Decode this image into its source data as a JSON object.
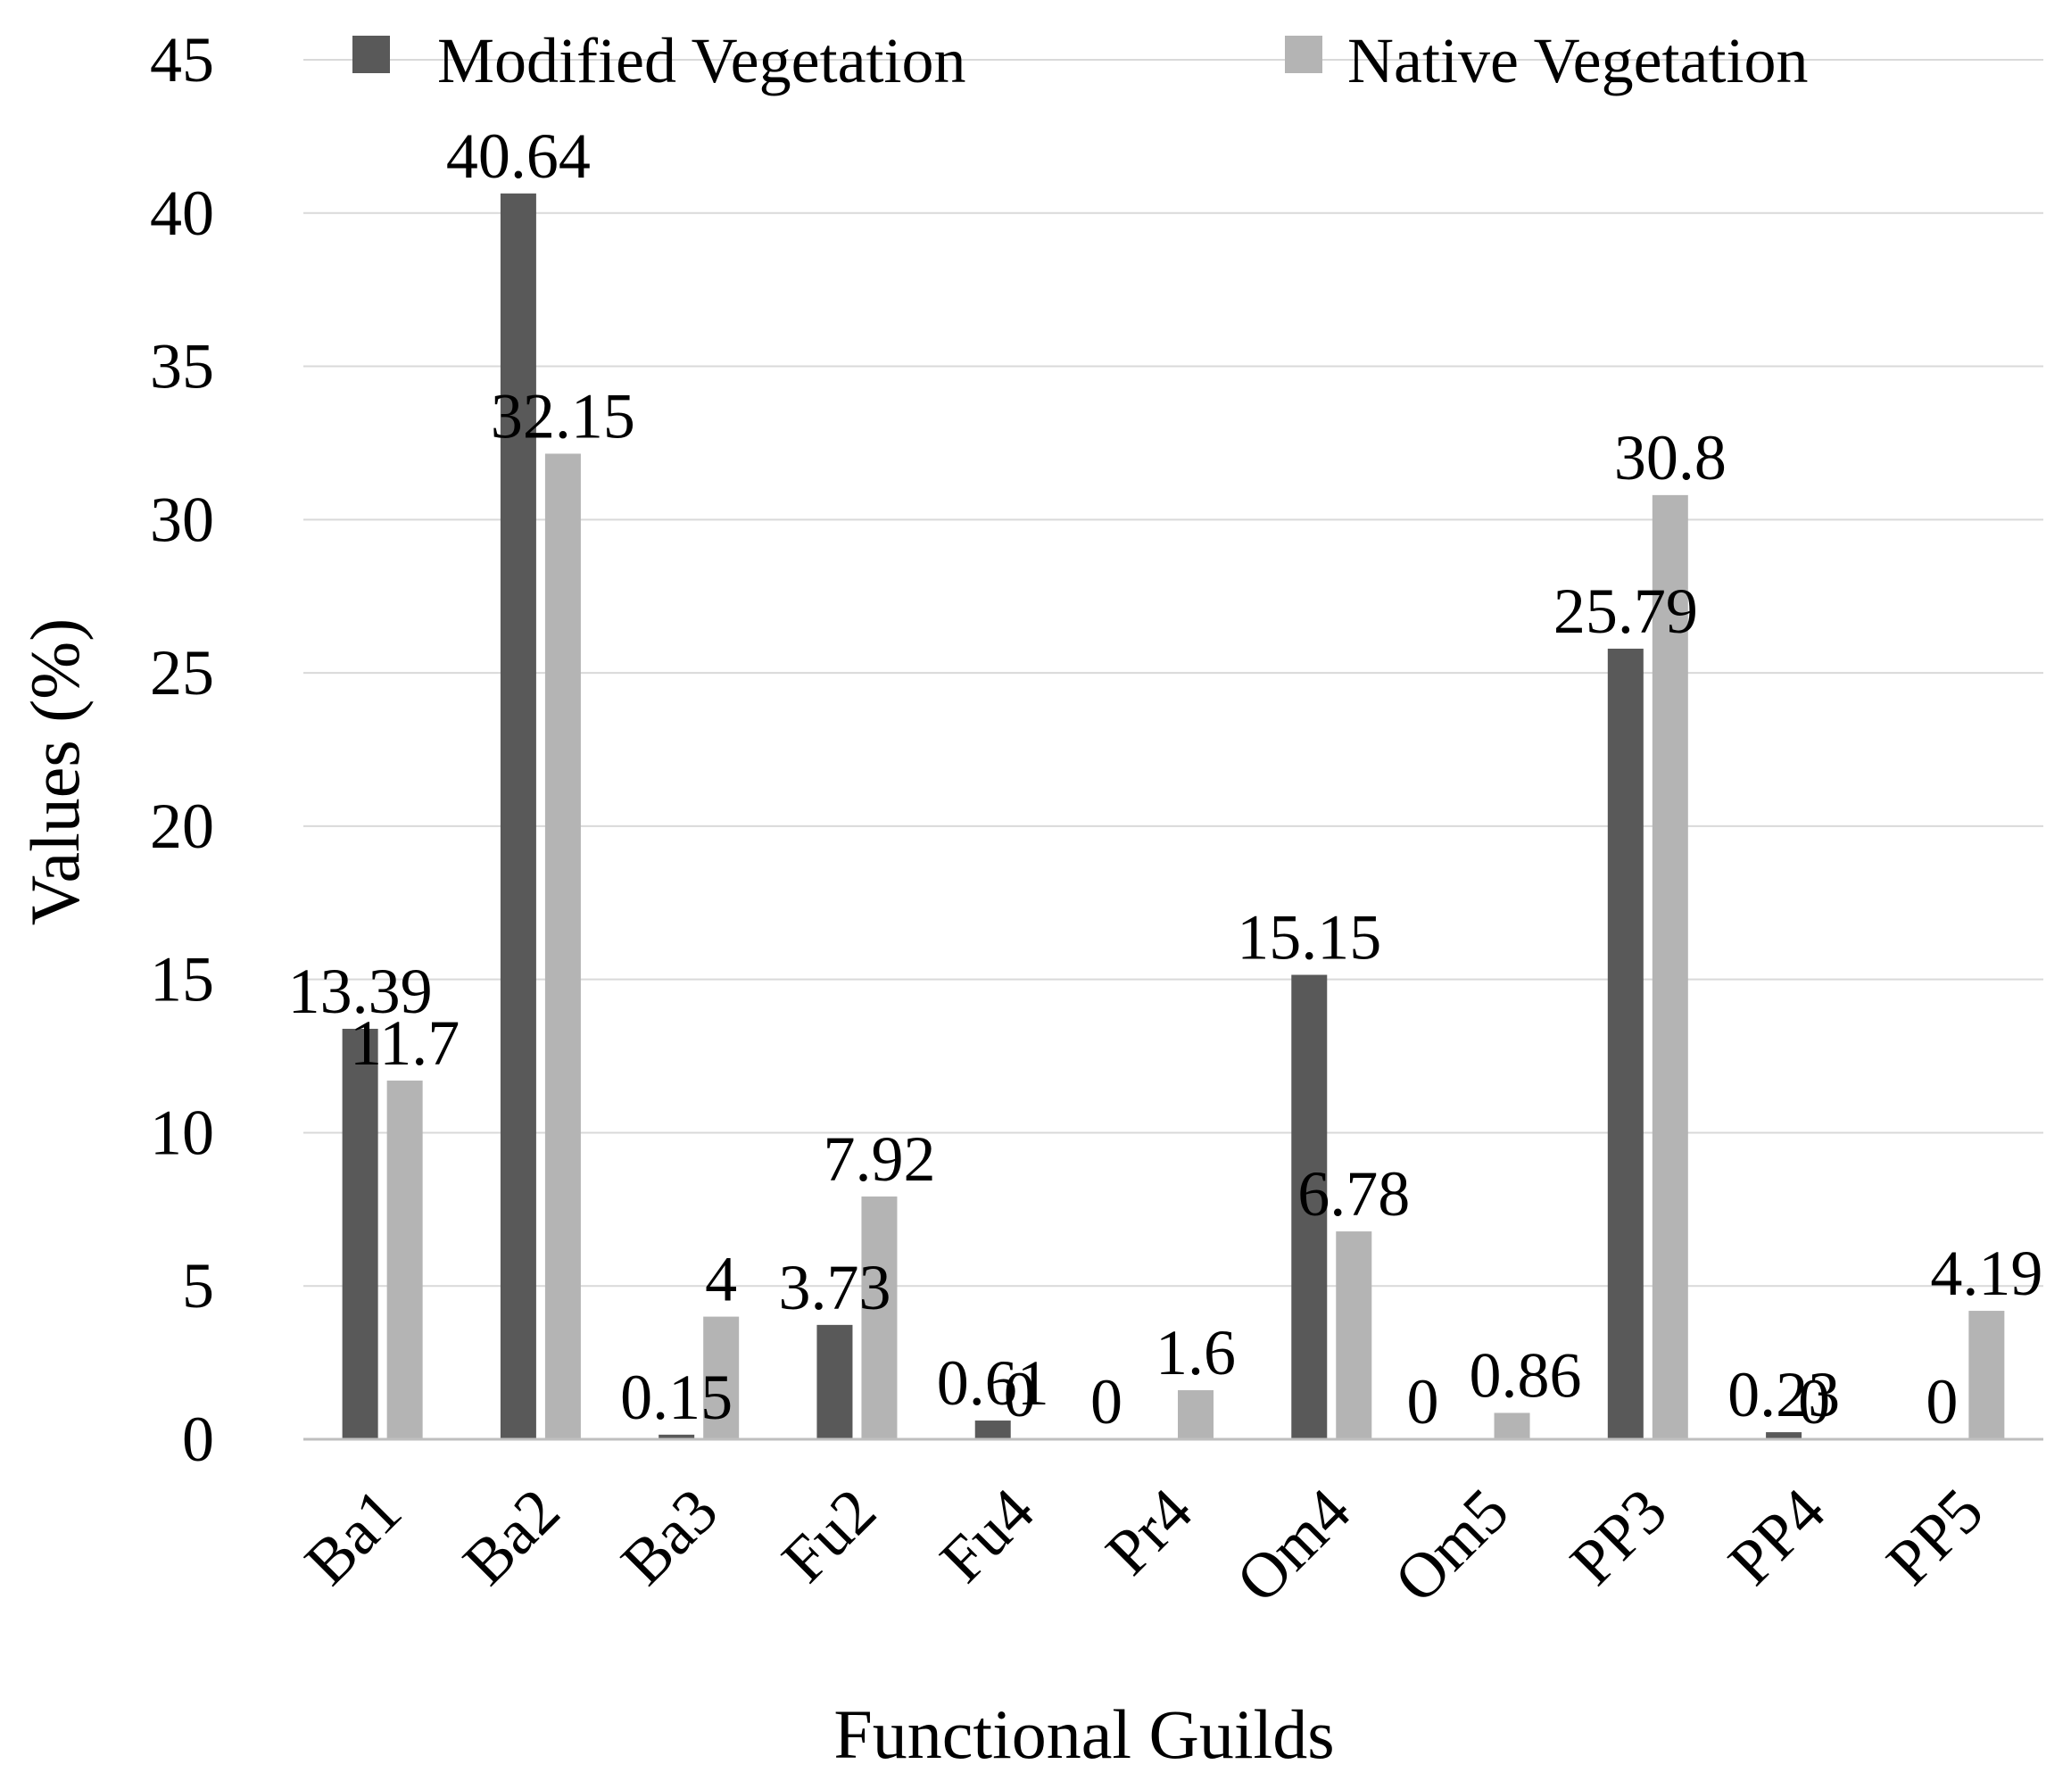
{
  "chart_data": {
    "type": "bar",
    "title": "",
    "xlabel": "Functional Guilds",
    "ylabel": "Values (%)",
    "ylim": [
      0,
      45
    ],
    "yticks": [
      0,
      5,
      10,
      15,
      20,
      25,
      30,
      35,
      40,
      45
    ],
    "grid": true,
    "legend_position": "top",
    "categories": [
      "Ba1",
      "Ba2",
      "Ba3",
      "Fu2",
      "Fu4",
      "Pr4",
      "Om4",
      "Om5",
      "PP3",
      "PP4",
      "PP5"
    ],
    "series": [
      {
        "name": "Modified Vegetation",
        "color": "#595959",
        "values": [
          13.39,
          40.64,
          0.15,
          3.73,
          0.61,
          0,
          15.15,
          0,
          25.79,
          0.23,
          0
        ],
        "labels": [
          "13.39",
          "40.64",
          "0.15",
          "3.73",
          "0.61",
          "0",
          "15.15",
          "0",
          "25.79",
          "0.23",
          "0"
        ]
      },
      {
        "name": "Native Vegetation",
        "color": "#b4b4b4",
        "values": [
          11.7,
          32.15,
          4,
          7.92,
          0,
          1.6,
          6.78,
          0.86,
          30.8,
          0,
          4.19
        ],
        "labels": [
          "11.7",
          "32.15",
          "4",
          "7.92",
          "0",
          "1.6",
          "6.78",
          "0.86",
          "30.8",
          "0",
          "4.19"
        ]
      }
    ]
  },
  "colors": {
    "gridline": "#d9d9d9",
    "axis": "#bfbfbf"
  }
}
